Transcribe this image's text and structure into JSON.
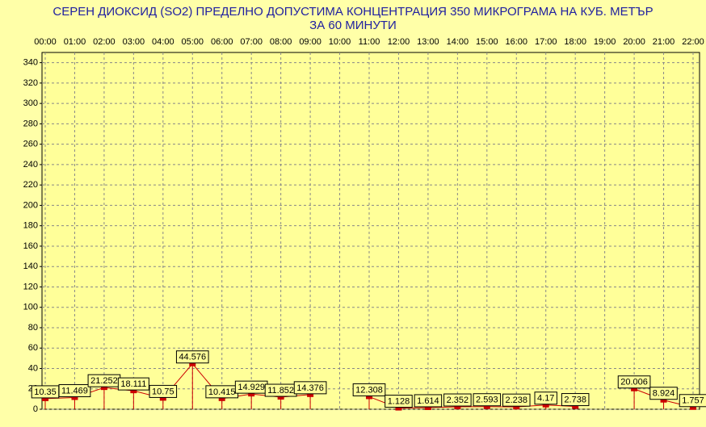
{
  "chart_data": {
    "type": "line",
    "title": "СЕРЕН ДИОКСИД  (SO2)  ПРЕДЕЛНО ДОПУСТИМА КОНЦЕНТРАЦИЯ 350 МИКРОГРАМА  НА КУБ. МЕТЪР",
    "subtitle": "ЗА 60 МИНУТИ",
    "categories": [
      "00:00",
      "01:00",
      "02:00",
      "03:00",
      "04:00",
      "05:00",
      "06:00",
      "07:00",
      "08:00",
      "09:00",
      "10:00",
      "11:00",
      "12:00",
      "13:00",
      "14:00",
      "15:00",
      "16:00",
      "17:00",
      "18:00",
      "19:00",
      "20:00",
      "21:00",
      "22:00"
    ],
    "values": [
      10.35,
      11.469,
      21.252,
      18.111,
      10.75,
      44.576,
      10.415,
      14.929,
      11.852,
      14.376,
      null,
      12.308,
      1.128,
      1.614,
      2.352,
      2.593,
      2.238,
      4.17,
      2.738,
      null,
      20.006,
      8.924,
      1.757
    ],
    "color": "#cc0000",
    "ylim": [
      0,
      350
    ],
    "yticks": [
      0,
      20,
      40,
      60,
      80,
      100,
      120,
      140,
      160,
      180,
      200,
      220,
      240,
      260,
      280,
      300,
      320,
      340
    ],
    "grid": true
  }
}
